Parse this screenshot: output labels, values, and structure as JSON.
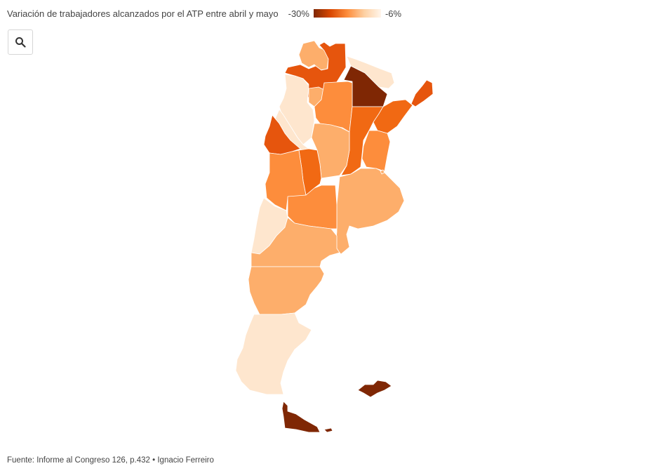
{
  "legend": {
    "title": "Variación de trabajadores alcanzados por el ATP entre abril y mayo",
    "min_label": "-30%",
    "max_label": "-6%",
    "scale_colors": [
      "#7f2704",
      "#d94801",
      "#fd8d3c",
      "#fdd0a2",
      "#fff5eb"
    ]
  },
  "search": {
    "icon": "search-icon"
  },
  "provinces": [
    {
      "id": "jujuy",
      "color": "#fdae6b"
    },
    {
      "id": "salta",
      "color": "#e6550d"
    },
    {
      "id": "formosa",
      "color": "#fee6ce"
    },
    {
      "id": "chaco",
      "color": "#7f2704"
    },
    {
      "id": "misiones",
      "color": "#e6550d"
    },
    {
      "id": "tucuman",
      "color": "#fdae6b"
    },
    {
      "id": "catamarca",
      "color": "#fee6ce"
    },
    {
      "id": "santiago-del-estero",
      "color": "#fd8d3c"
    },
    {
      "id": "corrientes",
      "color": "#f16913"
    },
    {
      "id": "la-rioja",
      "color": "#fee6ce"
    },
    {
      "id": "santa-fe",
      "color": "#f16913"
    },
    {
      "id": "entre-rios",
      "color": "#fd8d3c"
    },
    {
      "id": "san-juan",
      "color": "#e6550d"
    },
    {
      "id": "cordoba",
      "color": "#fdae6b"
    },
    {
      "id": "san-luis",
      "color": "#f16913"
    },
    {
      "id": "mendoza",
      "color": "#fd8d3c"
    },
    {
      "id": "buenos-aires",
      "color": "#fdae6b"
    },
    {
      "id": "caba",
      "color": "#fdae6b"
    },
    {
      "id": "la-pampa",
      "color": "#fd8d3c"
    },
    {
      "id": "neuquen",
      "color": "#fee6ce"
    },
    {
      "id": "rio-negro",
      "color": "#fdae6b"
    },
    {
      "id": "chubut",
      "color": "#fdae6b"
    },
    {
      "id": "santa-cruz",
      "color": "#fee6ce"
    },
    {
      "id": "tierra-del-fuego",
      "color": "#7f2704"
    },
    {
      "id": "malvinas",
      "color": "#7f2704"
    }
  ],
  "footer": "Fuente: Informe al Congreso 126, p.432 • Ignacio Ferreiro"
}
